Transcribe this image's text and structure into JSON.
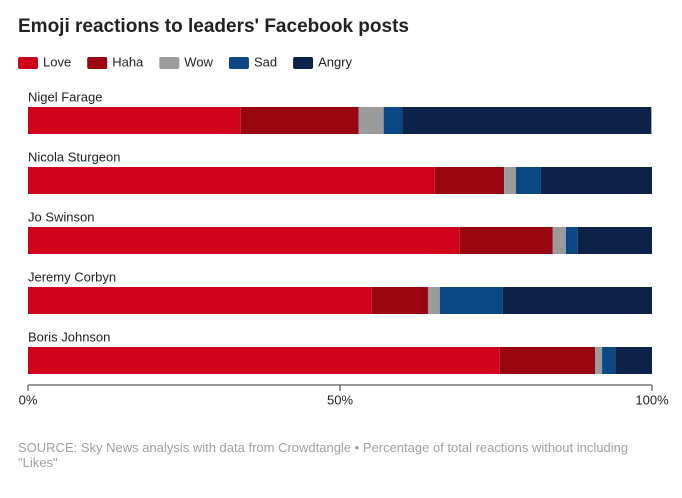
{
  "chart_data": {
    "type": "bar",
    "title": "Emoji reactions to leaders' Facebook posts",
    "categories": [
      "Nigel Farage",
      "Nicola Sturgeon",
      "Jo Swinson",
      "Jeremy Corbyn",
      "Boris Johnson"
    ],
    "series": [
      {
        "name": "Love",
        "color": "#d0021b",
        "values": [
          34.1,
          65.2,
          69.2,
          55.1,
          75.6
        ]
      },
      {
        "name": "Haha",
        "color": "#9a0610",
        "values": [
          18.9,
          11.1,
          14.9,
          9.0,
          15.3
        ]
      },
      {
        "name": "Wow",
        "color": "#9b9b9b",
        "values": [
          4.0,
          1.9,
          2.1,
          1.9,
          1.1
        ]
      },
      {
        "name": "Sad",
        "color": "#0a4784",
        "values": [
          3.0,
          4.0,
          1.9,
          10.1,
          2.1
        ]
      },
      {
        "name": "Angry",
        "color": "#0d2249",
        "values": [
          39.9,
          17.8,
          11.9,
          23.9,
          5.9
        ]
      }
    ],
    "xlim": [
      0,
      100
    ],
    "xticks": [
      {
        "value": 0,
        "label": "0%"
      },
      {
        "value": 50,
        "label": "50%"
      },
      {
        "value": 100,
        "label": "100%"
      }
    ],
    "source": "SOURCE: Sky News analysis with data from Crowdtangle • Percentage of total reactions without including \"Likes\""
  }
}
